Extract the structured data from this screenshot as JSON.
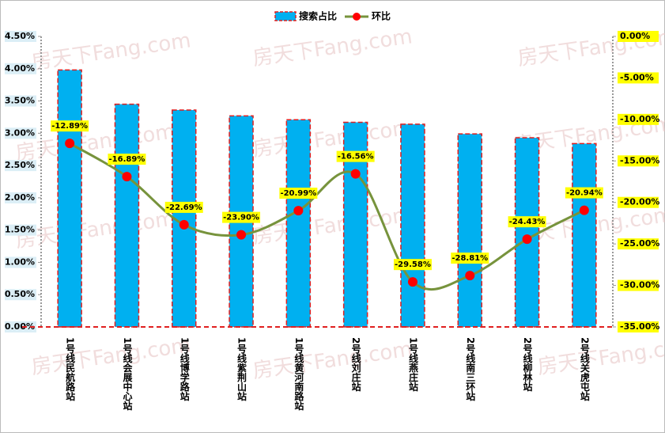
{
  "chart_data": {
    "type": "bar-line",
    "watermark": "房天下Fang.com",
    "categories": [
      "1号线民航路站",
      "1号线会展中心站",
      "1号线博学路站",
      "1号线紫荆山站",
      "1号线黄河南路站",
      "2号线刘庄站",
      "1号线燕庄站",
      "2号线南三环站",
      "2号线柳林站",
      "2号线关虎屯站"
    ],
    "series": [
      {
        "name": "搜索占比",
        "type": "bar",
        "color": "#00b0f0",
        "edge_color": "#e02020",
        "values": [
          3.98,
          3.45,
          3.36,
          3.27,
          3.21,
          3.17,
          3.14,
          2.99,
          2.93,
          2.84
        ]
      },
      {
        "name": "环比",
        "type": "line",
        "axis": "y2",
        "color": "#77933c",
        "marker_color": "#ff0000",
        "values": [
          -12.89,
          -16.89,
          -22.69,
          -23.9,
          -20.99,
          -16.56,
          -29.58,
          -28.81,
          -24.43,
          -20.94
        ],
        "value_labels": [
          "-12.89%",
          "-16.89%",
          "-22.69%",
          "-23.90%",
          "-20.99%",
          "-16.56%",
          "-29.58%",
          "-28.81%",
          "-24.43%",
          "-20.94%"
        ]
      }
    ],
    "ylim": [
      0,
      4.5
    ],
    "yticks": [
      {
        "value": 0,
        "label": "0.00%"
      },
      {
        "value": 0.5,
        "label": "0.50%"
      },
      {
        "value": 1,
        "label": "1.00%"
      },
      {
        "value": 1.5,
        "label": "1.50%"
      },
      {
        "value": 2,
        "label": "2.00%"
      },
      {
        "value": 2.5,
        "label": "2.50%"
      },
      {
        "value": 3,
        "label": "3.00%"
      },
      {
        "value": 3.5,
        "label": "3.50%"
      },
      {
        "value": 4,
        "label": "4.00%"
      },
      {
        "value": 4.5,
        "label": "4.50%"
      }
    ],
    "y2lim": [
      -35,
      0
    ],
    "y2ticks": [
      {
        "value": -35,
        "label": "-35.00%"
      },
      {
        "value": -30,
        "label": "-30.00%"
      },
      {
        "value": -25,
        "label": "-25.00%"
      },
      {
        "value": -20,
        "label": "-20.00%"
      },
      {
        "value": -15,
        "label": "-15.00%"
      },
      {
        "value": -10,
        "label": "-10.00%"
      },
      {
        "value": -5,
        "label": "-5.00%"
      },
      {
        "value": 0,
        "label": "0.00%"
      }
    ],
    "legend": "top"
  }
}
